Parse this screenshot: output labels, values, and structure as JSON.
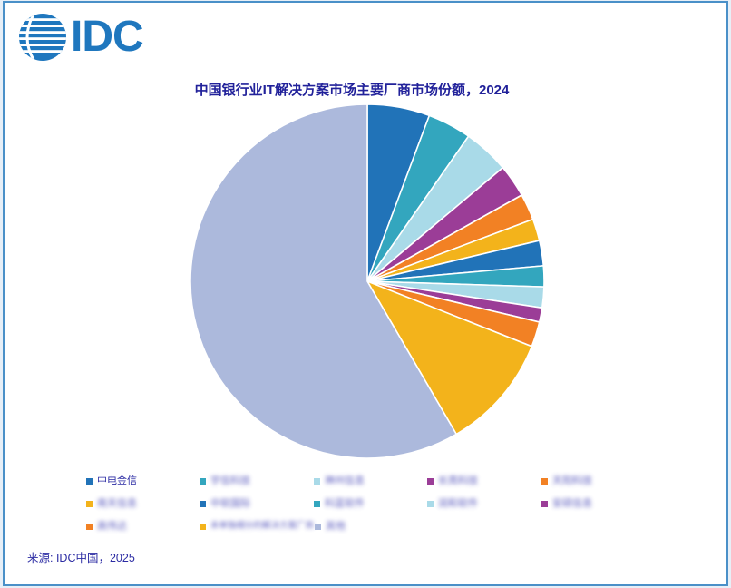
{
  "header": {
    "logo_text": "IDC"
  },
  "chart_data": {
    "type": "pie",
    "title": "中国银行业IT解决方案市场主要厂商市场份额，2024",
    "legend_position": "bottom",
    "start_angle": "12-oclock-clockwise",
    "slices": [
      {
        "label": "中电金信",
        "value_pct": 5.7,
        "color": "#2173B8",
        "label_blurred": false
      },
      {
        "label": "宇信科技",
        "value_pct": 4.0,
        "color": "#33A6BE",
        "label_blurred": true
      },
      {
        "label": "神州信息",
        "value_pct": 4.2,
        "color": "#A9DAE8",
        "label_blurred": true
      },
      {
        "label": "长亮科技",
        "value_pct": 3.0,
        "color": "#9B3D97",
        "label_blurred": true
      },
      {
        "label": "天阳科技",
        "value_pct": 2.4,
        "color": "#F28124",
        "label_blurred": true
      },
      {
        "label": "南天信息",
        "value_pct": 2.0,
        "color": "#F3B31B",
        "label_blurred": true
      },
      {
        "label": "中软国际",
        "value_pct": 2.3,
        "color": "#2173B8",
        "label_blurred": true
      },
      {
        "label": "科蓝软件",
        "value_pct": 1.9,
        "color": "#33A6BE",
        "label_blurred": true
      },
      {
        "label": "润和软件",
        "value_pct": 1.9,
        "color": "#A9DAE8",
        "label_blurred": true
      },
      {
        "label": "安硕信息",
        "value_pct": 1.3,
        "color": "#9B3D97",
        "label_blurred": true
      },
      {
        "label": "高伟达",
        "value_pct": 2.3,
        "color": "#F28124",
        "label_blurred": true
      },
      {
        "label": "未单独细分的解决方案厂商",
        "value_pct": 10.6,
        "color": "#F3B31B",
        "label_blurred": true
      },
      {
        "label": "其他",
        "value_pct": 58.4,
        "color": "#ACB9DC",
        "label_blurred": true
      }
    ]
  },
  "footer": {
    "source": "来源: IDC中国，2025"
  },
  "colors": {
    "page_border": "#4A90C8",
    "outer_background": "#E7EFF7",
    "title_text": "#21219A",
    "legend_text": "#2B2BA3",
    "logo_blue": "#1F77BE",
    "wedge_separator": "#FFFFFF"
  }
}
